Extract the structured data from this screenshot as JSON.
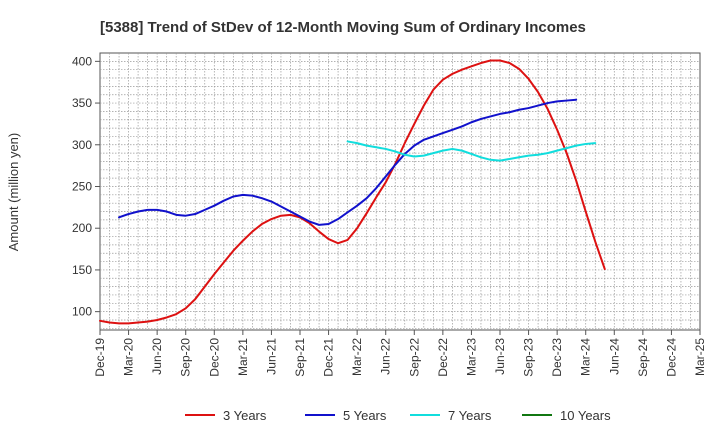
{
  "chart_data": {
    "type": "line",
    "title": "[5388]  Trend of StDev of 12-Month Moving Sum of Ordinary Incomes",
    "xlabel": "",
    "ylabel": "Amount (million yen)",
    "ylim": [
      78,
      410
    ],
    "yticks": [
      100,
      150,
      200,
      250,
      300,
      350,
      400
    ],
    "ytick_labels": [
      "100",
      "150",
      "200",
      "250",
      "300",
      "350",
      "400"
    ],
    "x_start": "Dec-19",
    "x_months": 63,
    "xtick_labels": [
      "Dec-19",
      "Mar-20",
      "Jun-20",
      "Sep-20",
      "Dec-20",
      "Mar-21",
      "Jun-21",
      "Sep-21",
      "Dec-21",
      "Mar-22",
      "Jun-22",
      "Sep-22",
      "Dec-22",
      "Mar-23",
      "Jun-23",
      "Sep-23",
      "Dec-23",
      "Mar-24",
      "Jun-24",
      "Sep-24",
      "Dec-24",
      "Mar-25"
    ],
    "grid": true,
    "legend_position": "bottom",
    "series": [
      {
        "name": "3 Years",
        "color": "#dd1111",
        "points": [
          [
            0,
            89
          ],
          [
            1,
            87
          ],
          [
            2,
            86
          ],
          [
            3,
            86
          ],
          [
            4,
            87
          ],
          [
            5,
            88
          ],
          [
            6,
            90
          ],
          [
            7,
            93
          ],
          [
            8,
            97
          ],
          [
            9,
            104
          ],
          [
            10,
            115
          ],
          [
            11,
            130
          ],
          [
            12,
            145
          ],
          [
            13,
            159
          ],
          [
            14,
            173
          ],
          [
            15,
            185
          ],
          [
            16,
            196
          ],
          [
            17,
            205
          ],
          [
            18,
            211
          ],
          [
            19,
            215
          ],
          [
            20,
            216
          ],
          [
            21,
            213
          ],
          [
            22,
            206
          ],
          [
            23,
            196
          ],
          [
            24,
            187
          ],
          [
            25,
            182
          ],
          [
            26,
            186
          ],
          [
            27,
            200
          ],
          [
            28,
            218
          ],
          [
            29,
            237
          ],
          [
            30,
            255
          ],
          [
            31,
            277
          ],
          [
            32,
            302
          ],
          [
            33,
            325
          ],
          [
            34,
            347
          ],
          [
            35,
            366
          ],
          [
            36,
            378
          ],
          [
            37,
            385
          ],
          [
            38,
            390
          ],
          [
            39,
            394
          ],
          [
            40,
            398
          ],
          [
            41,
            401
          ],
          [
            42,
            401
          ],
          [
            43,
            398
          ],
          [
            44,
            391
          ],
          [
            45,
            379
          ],
          [
            46,
            363
          ],
          [
            47,
            343
          ],
          [
            48,
            318
          ],
          [
            49,
            290
          ],
          [
            50,
            257
          ],
          [
            51,
            220
          ],
          [
            52,
            184
          ],
          [
            53,
            151
          ]
        ]
      },
      {
        "name": "5 Years",
        "color": "#1111cc",
        "points": [
          [
            2,
            213
          ],
          [
            3,
            217
          ],
          [
            4,
            220
          ],
          [
            5,
            222
          ],
          [
            6,
            222
          ],
          [
            7,
            220
          ],
          [
            8,
            216
          ],
          [
            9,
            215
          ],
          [
            10,
            217
          ],
          [
            11,
            222
          ],
          [
            12,
            227
          ],
          [
            13,
            233
          ],
          [
            14,
            238
          ],
          [
            15,
            240
          ],
          [
            16,
            239
          ],
          [
            17,
            236
          ],
          [
            18,
            232
          ],
          [
            19,
            226
          ],
          [
            20,
            220
          ],
          [
            21,
            214
          ],
          [
            22,
            208
          ],
          [
            23,
            204
          ],
          [
            24,
            205
          ],
          [
            25,
            211
          ],
          [
            26,
            219
          ],
          [
            27,
            227
          ],
          [
            28,
            236
          ],
          [
            29,
            248
          ],
          [
            30,
            262
          ],
          [
            31,
            276
          ],
          [
            32,
            289
          ],
          [
            33,
            299
          ],
          [
            34,
            306
          ],
          [
            35,
            310
          ],
          [
            36,
            314
          ],
          [
            37,
            318
          ],
          [
            38,
            322
          ],
          [
            39,
            327
          ],
          [
            40,
            331
          ],
          [
            41,
            334
          ],
          [
            42,
            337
          ],
          [
            43,
            339
          ],
          [
            44,
            342
          ],
          [
            45,
            344
          ],
          [
            46,
            347
          ],
          [
            47,
            350
          ],
          [
            48,
            352
          ],
          [
            49,
            353
          ],
          [
            50,
            354
          ]
        ]
      },
      {
        "name": "7 Years",
        "color": "#11dddd",
        "points": [
          [
            26,
            304
          ],
          [
            27,
            302
          ],
          [
            28,
            299
          ],
          [
            29,
            297
          ],
          [
            30,
            295
          ],
          [
            31,
            292
          ],
          [
            32,
            288
          ],
          [
            33,
            286
          ],
          [
            34,
            287
          ],
          [
            35,
            290
          ],
          [
            36,
            293
          ],
          [
            37,
            295
          ],
          [
            38,
            293
          ],
          [
            39,
            289
          ],
          [
            40,
            285
          ],
          [
            41,
            282
          ],
          [
            42,
            281
          ],
          [
            43,
            283
          ],
          [
            44,
            285
          ],
          [
            45,
            287
          ],
          [
            46,
            288
          ],
          [
            47,
            290
          ],
          [
            48,
            293
          ],
          [
            49,
            296
          ],
          [
            50,
            299
          ],
          [
            51,
            301
          ],
          [
            52,
            302
          ]
        ]
      },
      {
        "name": "10 Years",
        "color": "#117711",
        "points": []
      }
    ]
  }
}
